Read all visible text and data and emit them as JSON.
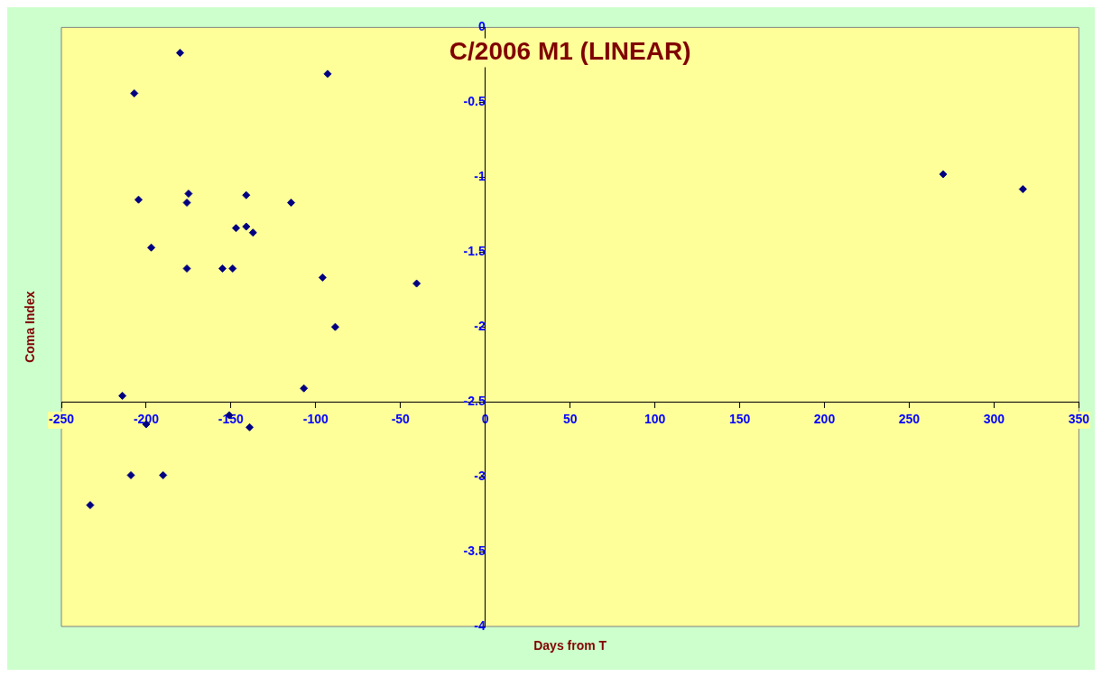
{
  "chart_data": {
    "type": "scatter",
    "title": "C/2006 M1 (LINEAR)",
    "xlabel": "Days from T",
    "ylabel": "Coma Index",
    "x": [
      -180,
      -93,
      -207,
      270,
      317,
      -204.5,
      -175,
      -176,
      -141,
      -114.5,
      -147,
      -141,
      -137,
      -197,
      -176,
      -155,
      -149,
      -96,
      -40.5,
      -88.5,
      -107,
      -214,
      -151,
      -200,
      -139,
      -209,
      -190,
      -233
    ],
    "series": [
      {
        "color": "#000080",
        "values": [
          -0.17,
          -0.31,
          -0.44,
          -0.98,
          -1.08,
          -1.15,
          -1.11,
          -1.17,
          -1.12,
          -1.17,
          -1.34,
          -1.33,
          -1.37,
          -1.47,
          -1.61,
          -1.61,
          -1.61,
          -1.67,
          -1.71,
          -2.0,
          -2.41,
          -2.46,
          -2.59,
          -2.65,
          -2.67,
          -2.99,
          -2.99,
          -3.19
        ]
      }
    ],
    "xlim": [
      -250,
      350
    ],
    "xticks": [
      -250,
      -200,
      -150,
      -100,
      -50,
      0,
      50,
      100,
      150,
      200,
      250,
      300,
      350
    ],
    "ylim": [
      -4,
      0
    ],
    "yticks": [
      -4,
      -3.5,
      -3,
      -2.5,
      -2,
      -1.5,
      -1,
      -0.5,
      0
    ],
    "grid": false,
    "legend": false,
    "marker": "diamond"
  }
}
